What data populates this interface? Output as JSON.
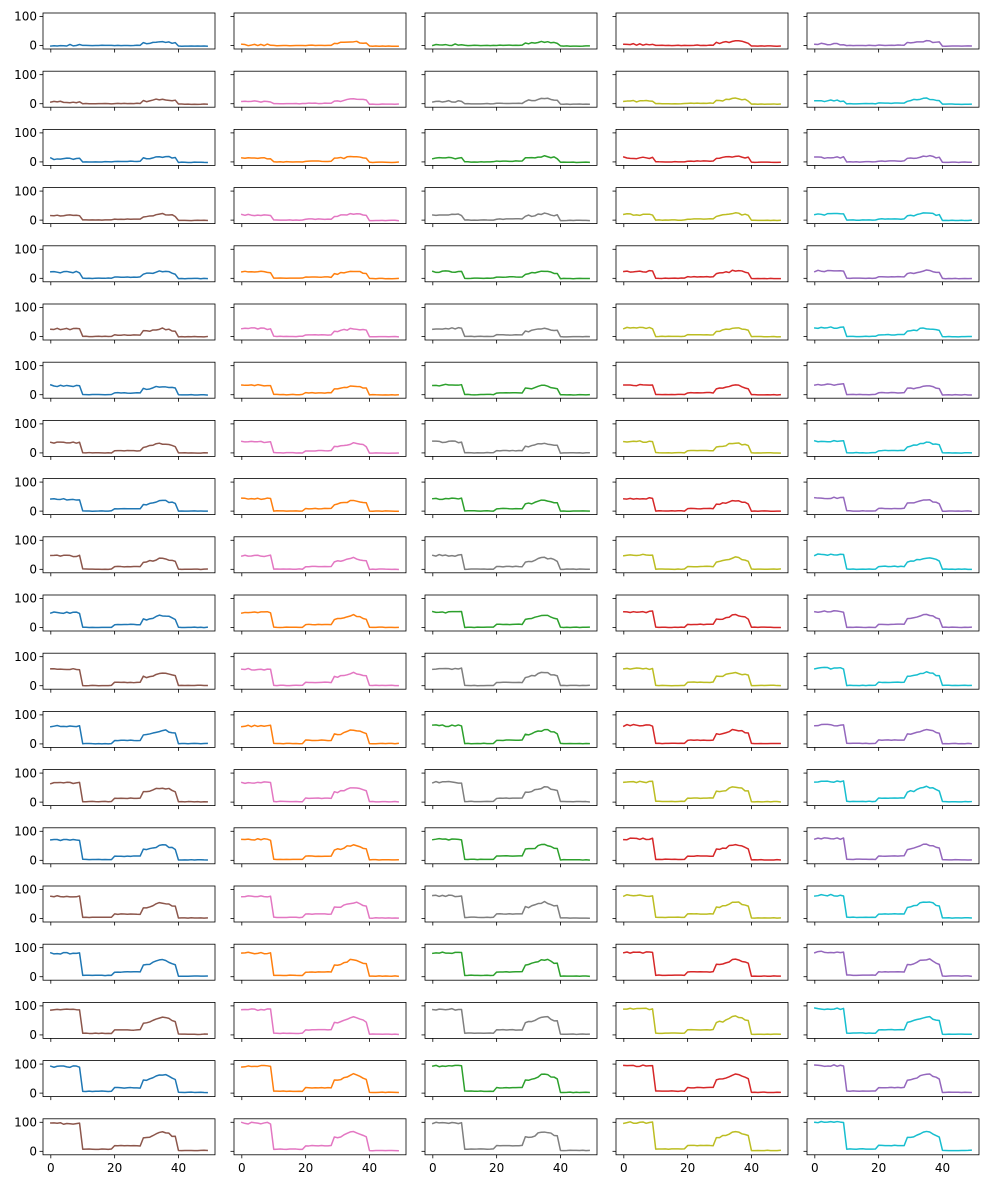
{
  "chart_data": {
    "type": "line",
    "layout": "small-multiples grid, 20 rows x 5 columns",
    "shared_x": true,
    "shared_y": true,
    "x": [
      0,
      1,
      2,
      3,
      4,
      5,
      6,
      7,
      8,
      9,
      10,
      11,
      12,
      13,
      14,
      15,
      16,
      17,
      18,
      19,
      20,
      21,
      22,
      23,
      24,
      25,
      26,
      27,
      28,
      29,
      30,
      31,
      32,
      33,
      34,
      35,
      36,
      37,
      38,
      39,
      40,
      41,
      42,
      43,
      44,
      45,
      46,
      47,
      48,
      49
    ],
    "xlim": [
      -2.45,
      51.45
    ],
    "ylim": [
      -12,
      112
    ],
    "x_ticks": [
      0,
      20,
      40
    ],
    "x_tick_labels": [
      "0",
      "20",
      "40"
    ],
    "y_ticks": [
      0,
      100
    ],
    "y_tick_labels": [
      "0",
      "100"
    ],
    "palette": [
      "#1f77b4",
      "#ff7f0e",
      "#2ca02c",
      "#d62728",
      "#9467bd",
      "#8c564b",
      "#e377c2",
      "#7f7f7f",
      "#bcbd22",
      "#17becf"
    ],
    "series_generation": "series k (0-99, row-major) = ramp(k) + noise: starts near k, drops by about k after x=9, rises partly near x=20, bumps near x=30-38, falls back near x=40",
    "xlabel": "",
    "ylabel": "",
    "title": ""
  }
}
